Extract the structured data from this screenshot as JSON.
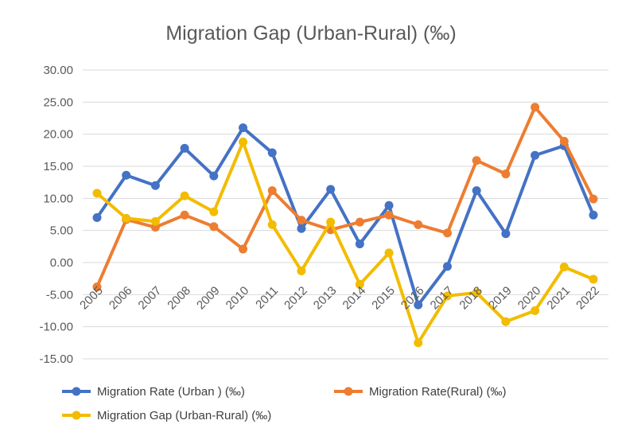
{
  "chart_data": {
    "type": "line",
    "title": "Migration Gap (Urban-Rural) (‰)",
    "xlabel": "",
    "ylabel": "",
    "ylim": [
      -15,
      30
    ],
    "yticks": [
      "30.00",
      "25.00",
      "20.00",
      "15.00",
      "10.00",
      "5.00",
      "0.00",
      "-5.00",
      "-10.00",
      "-15.00"
    ],
    "ytick_values": [
      30,
      25,
      20,
      15,
      10,
      5,
      0,
      -5,
      -10,
      -15
    ],
    "grid": true,
    "legend_position": "bottom",
    "categories": [
      "2005",
      "2006",
      "2007",
      "2008",
      "2009",
      "2010",
      "2011",
      "2012",
      "2013",
      "2014",
      "2015",
      "2016",
      "2017",
      "2018",
      "2019",
      "2020",
      "2021",
      "2022"
    ],
    "series": [
      {
        "name": "Migration Rate (Urban ) (‰)",
        "color": "#4472C4",
        "values": [
          7.0,
          13.6,
          12.0,
          17.8,
          13.5,
          21.0,
          17.1,
          5.3,
          11.4,
          2.9,
          8.9,
          -6.6,
          -0.6,
          11.2,
          4.5,
          16.7,
          18.2,
          7.4
        ]
      },
      {
        "name": "Migration Rate(Rural) (‰)",
        "color": "#ED7D31",
        "values": [
          -3.8,
          6.7,
          5.5,
          7.4,
          5.6,
          2.1,
          11.2,
          6.6,
          5.1,
          6.3,
          7.4,
          5.9,
          4.6,
          15.9,
          13.8,
          24.2,
          18.9,
          9.9
        ]
      },
      {
        "name": "Migration Gap (Urban-Rural) (‰)",
        "color": "#F2BC00",
        "values": [
          10.8,
          6.9,
          6.4,
          10.4,
          7.9,
          18.8,
          5.9,
          -1.3,
          6.3,
          -3.4,
          1.5,
          -12.5,
          -5.2,
          -4.7,
          -9.2,
          -7.5,
          -0.7,
          -2.6
        ]
      }
    ]
  }
}
